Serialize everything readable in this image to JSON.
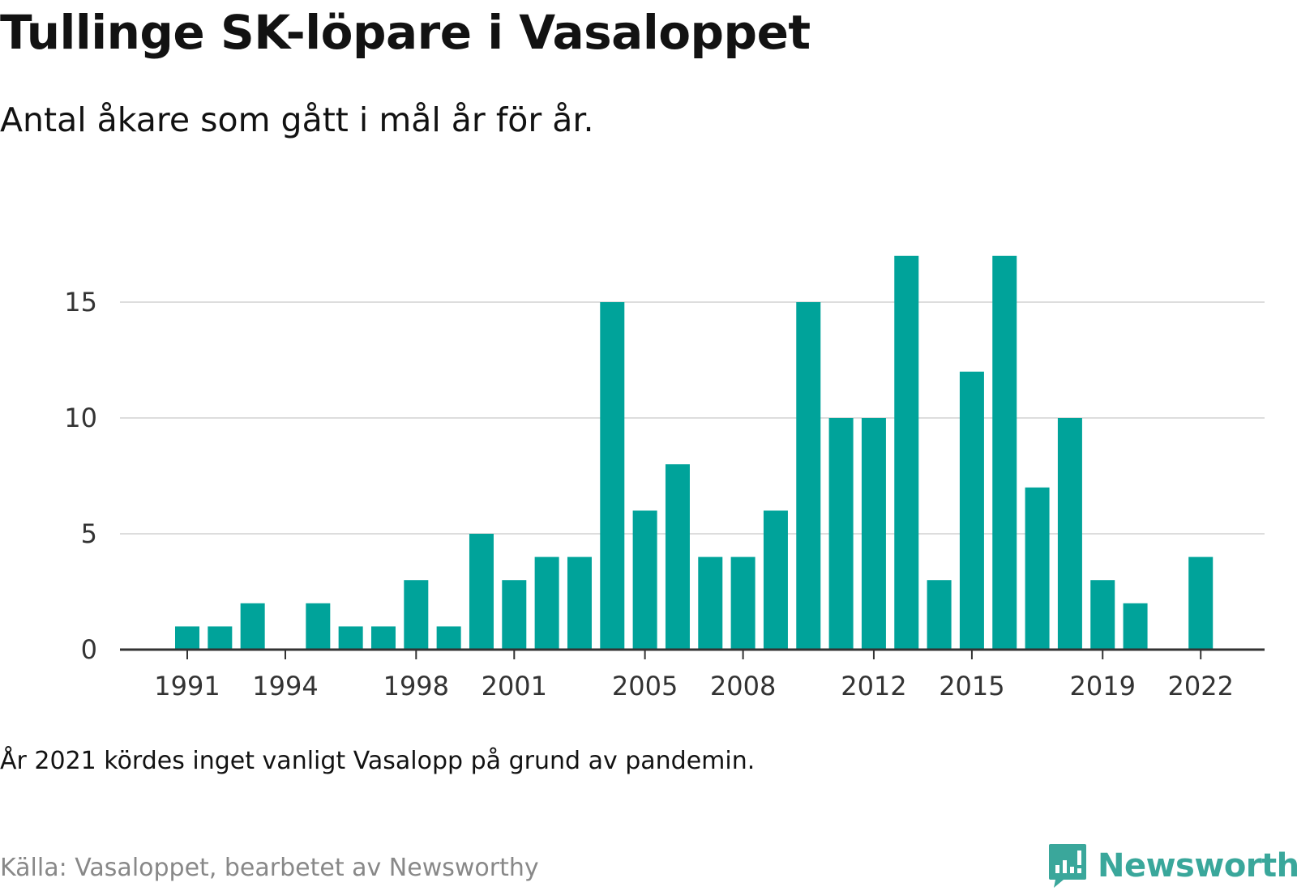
{
  "title": "Tullinge SK-löpare i Vasaloppet",
  "subtitle": "Antal åkare som gått i mål år för år.",
  "note": "År 2021 kördes inget vanligt Vasalopp på grund av pandemin.",
  "source": "Källa: Vasaloppet, bearbetet av Newsworthy",
  "brand": {
    "name": "Newsworthy",
    "icon": "newsworthy-logo-icon",
    "color": "#3aa79b"
  },
  "colors": {
    "bar": "#00a39a",
    "grid": "#dddddd",
    "axis": "#333333"
  },
  "chart_data": {
    "type": "bar",
    "title": "Tullinge SK-löpare i Vasaloppet",
    "subtitle": "Antal åkare som gått i mål år för år.",
    "xlabel": "",
    "ylabel": "",
    "x": [
      1991,
      1992,
      1993,
      1994,
      1995,
      1996,
      1997,
      1998,
      1999,
      2000,
      2001,
      2002,
      2003,
      2004,
      2005,
      2006,
      2007,
      2008,
      2009,
      2010,
      2011,
      2012,
      2013,
      2014,
      2015,
      2016,
      2017,
      2018,
      2019,
      2020,
      2021,
      2022
    ],
    "values": [
      1,
      1,
      2,
      0,
      2,
      1,
      1,
      3,
      1,
      5,
      3,
      4,
      4,
      15,
      6,
      8,
      4,
      4,
      6,
      15,
      10,
      10,
      17,
      3,
      12,
      17,
      7,
      10,
      3,
      2,
      0,
      4
    ],
    "x_ticks": [
      "1991",
      "1994",
      "1998",
      "2001",
      "2005",
      "2008",
      "2012",
      "2015",
      "2019",
      "2022"
    ],
    "y_ticks": [
      0,
      5,
      10,
      15
    ],
    "ylim": [
      0,
      17
    ],
    "grid": true,
    "legend": "none"
  }
}
